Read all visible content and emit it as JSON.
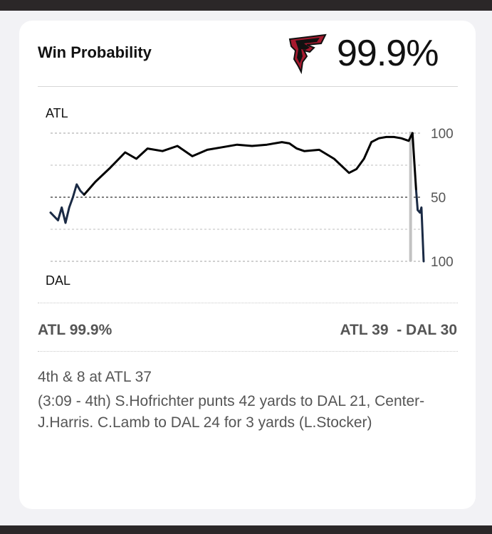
{
  "card": {
    "title": "Win Probability",
    "team_logo": "falcons-logo",
    "win_prob_display": "99.9%"
  },
  "chart_data": {
    "type": "line",
    "top_team": "ATL",
    "bottom_team": "DAL",
    "ylim": [
      0,
      100
    ],
    "y_ticks": [
      "100",
      "50",
      "100"
    ],
    "grid": true,
    "series": [
      {
        "color": "#1a2a44",
        "x": [
          0,
          1,
          2,
          3,
          4,
          5,
          6,
          7,
          8,
          9
        ],
        "y": [
          38,
          35,
          32,
          42,
          30,
          42,
          50,
          60,
          55,
          52
        ]
      },
      {
        "color": "#000000",
        "x": [
          9,
          12,
          16,
          20,
          23,
          26,
          30,
          34,
          38,
          42,
          46,
          50,
          54,
          58,
          62,
          64,
          66,
          68,
          72,
          76,
          80,
          82,
          84,
          86,
          88,
          90,
          92,
          94,
          96,
          97
        ],
        "y": [
          52,
          62,
          73,
          85,
          80,
          88,
          86,
          90,
          82,
          87,
          89,
          91,
          90,
          91,
          93,
          92,
          88,
          86,
          87,
          80,
          69,
          72,
          80,
          93,
          96,
          97,
          97,
          96,
          94,
          100
        ]
      },
      {
        "color": "#000000",
        "x": [
          97,
          98
        ],
        "y": [
          100,
          55
        ]
      },
      {
        "color": "#1a2a44",
        "x": [
          98,
          98.4,
          99,
          99.4,
          100
        ],
        "y": [
          55,
          40,
          38,
          42,
          0
        ]
      }
    ],
    "current_marker": {
      "x": 96.5,
      "color": "#c2c2c2"
    }
  },
  "summary": {
    "left": "ATL 99.9%",
    "score": "ATL 39  - DAL 30"
  },
  "play": {
    "down": "4th & 8 at ATL 37",
    "description": "(3:09 - 4th) S.Hofrichter punts 42 yards to DAL 21, Center-J.Harris. C.Lamb to DAL 24 for 3 yards (L.Stocker)"
  }
}
